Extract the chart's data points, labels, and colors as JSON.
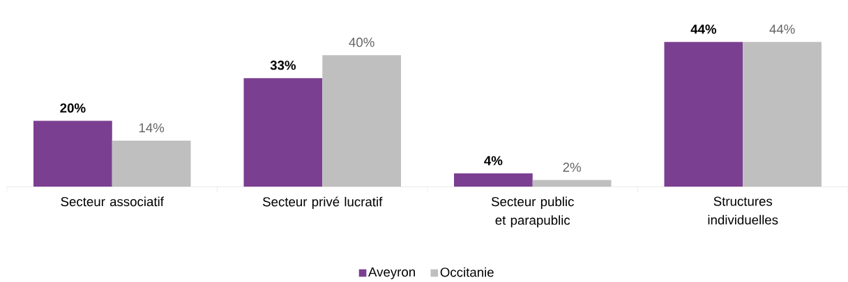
{
  "chart_data": {
    "type": "bar",
    "categories": [
      "Secteur associatif",
      "Secteur privé lucratif",
      "Secteur public et parapublic",
      "Structures individuelles"
    ],
    "series": [
      {
        "name": "Aveyron",
        "color": "#7b3f91",
        "values": [
          20,
          33,
          4,
          44
        ],
        "value_labels": [
          "20%",
          "33%",
          "4%",
          "44%"
        ]
      },
      {
        "name": "Occitanie",
        "color": "#bfbfbf",
        "values": [
          14,
          40,
          2,
          44
        ],
        "value_labels": [
          "14%",
          "40%",
          "2%",
          "44%"
        ]
      }
    ],
    "legend": "bottom"
  }
}
